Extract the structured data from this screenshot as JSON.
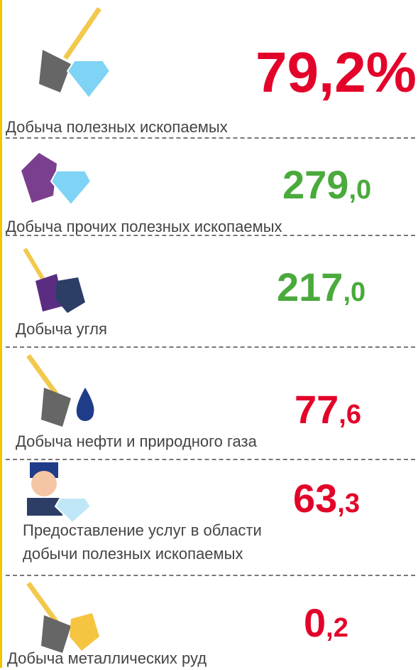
{
  "items": [
    {
      "label": [
        "Добыча полезных ископаемых"
      ],
      "value_main": "79,2%",
      "value_rest": "",
      "color": "#e3032a"
    },
    {
      "label": [
        "Добыча прочих полезных ископаемых"
      ],
      "value_main": "279",
      "value_rest": ",0",
      "color": "#4aaa3c"
    },
    {
      "label": [
        "Добыча угля"
      ],
      "value_main": "217",
      "value_rest": ",0",
      "color": "#4aaa3c"
    },
    {
      "label": [
        "Добыча нефти и природного газа"
      ],
      "value_main": "77",
      "value_rest": ",6",
      "color": "#e3032a"
    },
    {
      "label": [
        "Предоставление услуг в области",
        "добычи полезных ископаемых"
      ],
      "value_main": "63",
      "value_rest": ",3",
      "color": "#e3032a"
    },
    {
      "label": [
        "Добыча металлических руд"
      ],
      "value_main": "0",
      "value_rest": ",2",
      "color": "#e3032a"
    }
  ]
}
